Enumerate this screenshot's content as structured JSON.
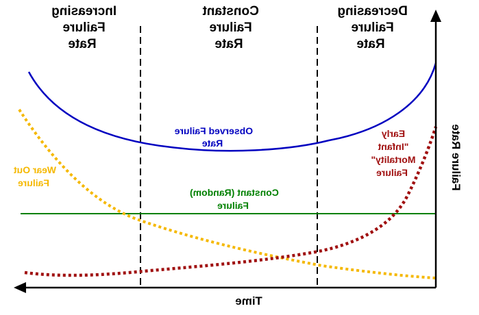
{
  "regions": {
    "left": [
      "Increasing",
      "Failure",
      "Rate"
    ],
    "middle": [
      "Constant",
      "Failure",
      "Rate"
    ],
    "right": [
      "Decreasing",
      "Failure",
      "Rate"
    ]
  },
  "axes": {
    "x_label": "Time",
    "y_label": "Failure Rate"
  },
  "curves": {
    "observed": {
      "label": [
        "Observed Failure",
        "Rate"
      ],
      "color": "#0000c0"
    },
    "constant": {
      "label": [
        "Constant (Random)",
        "Failure"
      ],
      "color": "#008000"
    },
    "wear_out": {
      "label": [
        "Wear Out",
        "Failure"
      ],
      "color": "#f5b800"
    },
    "early": {
      "label": [
        "Early",
        "\"Infant",
        "Mortality\"",
        "Failure"
      ],
      "color": "#a01010"
    }
  }
}
